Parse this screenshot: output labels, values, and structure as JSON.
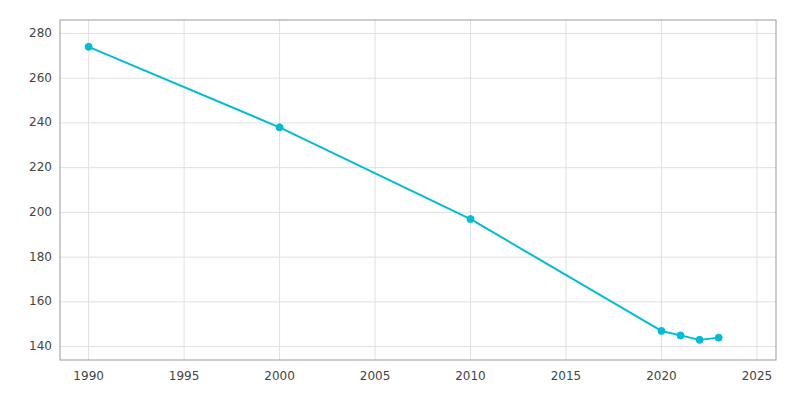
{
  "chart_data": {
    "type": "line",
    "x": [
      1990,
      2000,
      2010,
      2020,
      2021,
      2022,
      2023
    ],
    "values": [
      274,
      238,
      197,
      147,
      145,
      143,
      144
    ],
    "color": "#00bcd4",
    "marker": "circle",
    "xlim": [
      1988.5,
      2026
    ],
    "ylim": [
      134,
      286
    ],
    "xticks": [
      1990,
      1995,
      2000,
      2005,
      2010,
      2015,
      2020,
      2025
    ],
    "yticks": [
      140,
      160,
      180,
      200,
      220,
      240,
      260,
      280
    ],
    "grid": true
  }
}
